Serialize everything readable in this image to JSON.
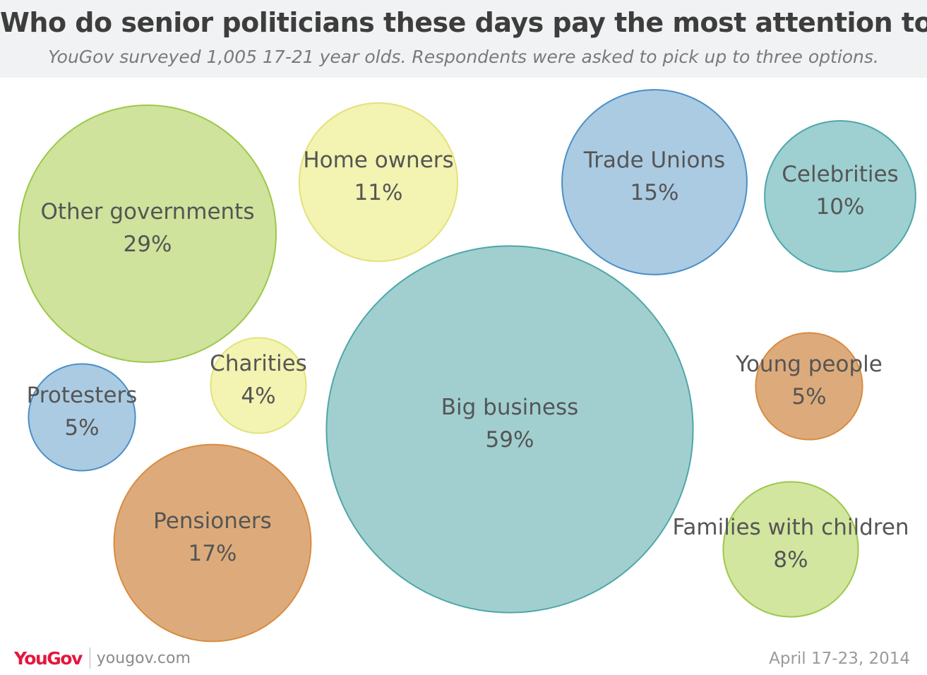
{
  "header": {
    "title": "Who do senior politicians these days pay the most attention to?",
    "subtitle": "YouGov surveyed 1,005 17-21 year olds. Respondents were asked to pick up to three options."
  },
  "chart_data": {
    "type": "bubble",
    "title": "Who do senior politicians these days pay the most attention to?",
    "subtitle": "YouGov surveyed 1,005 17-21 year olds. Respondents were asked to pick up to three options.",
    "unit": "%",
    "grid": false,
    "legend": "none",
    "bubbles": [
      {
        "label": "Other governments",
        "value": 29,
        "value_label": "29%",
        "color": "#cfe39c"
      },
      {
        "label": "Home owners",
        "value": 11,
        "value_label": "11%",
        "color": "#f3f3b2"
      },
      {
        "label": "Trade Unions",
        "value": 15,
        "value_label": "15%",
        "color": "#abcbe2"
      },
      {
        "label": "Celebrities",
        "value": 10,
        "value_label": "10%",
        "color": "#9ed0d1"
      },
      {
        "label": "Charities",
        "value": 4,
        "value_label": "4%",
        "color": "#f3f3b2"
      },
      {
        "label": "Protesters",
        "value": 5,
        "value_label": "5%",
        "color": "#abcbe2"
      },
      {
        "label": "Big business",
        "value": 59,
        "value_label": "59%",
        "color": "#a1cfd0"
      },
      {
        "label": "Young people",
        "value": 5,
        "value_label": "5%",
        "color": "#ddab7b"
      },
      {
        "label": "Pensioners",
        "value": 17,
        "value_label": "17%",
        "color": "#ddab7b"
      },
      {
        "label": "Families with children",
        "value": 8,
        "value_label": "8%",
        "color": "#d2e69f"
      }
    ]
  },
  "footer": {
    "logo": "YouGov",
    "site": "yougov.com",
    "date": "April 17-23, 2014"
  }
}
